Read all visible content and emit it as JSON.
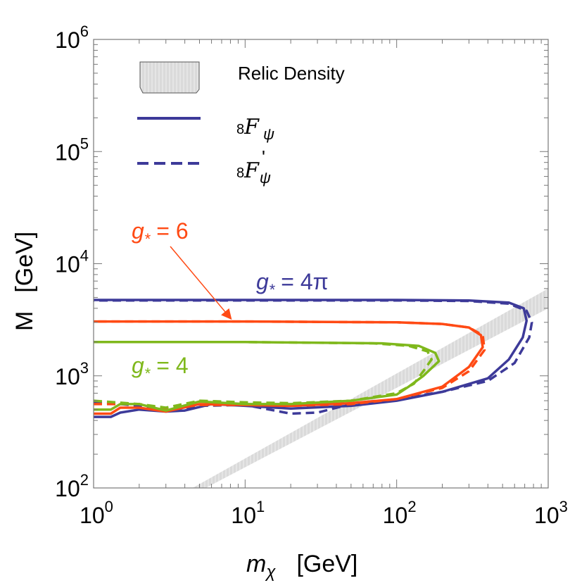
{
  "chart_data": {
    "type": "line",
    "xscale": "log",
    "yscale": "log",
    "xlim": [
      1,
      1000
    ],
    "ylim": [
      100,
      1000000
    ],
    "xlabel": "m_χ  [GeV]",
    "ylabel": "M  [GeV]",
    "xlabel_main": "m",
    "xlabel_sub": "χ",
    "xlabel_unit": "[GeV]",
    "ylabel_main": "M",
    "ylabel_unit": "[GeV]",
    "x_ticks": [
      {
        "base": "10",
        "exp": "0",
        "value": 1
      },
      {
        "base": "10",
        "exp": "1",
        "value": 10
      },
      {
        "base": "10",
        "exp": "2",
        "value": 100
      },
      {
        "base": "10",
        "exp": "3",
        "value": 1000
      }
    ],
    "y_ticks": [
      {
        "base": "10",
        "exp": "2",
        "value": 100
      },
      {
        "base": "10",
        "exp": "3",
        "value": 1000
      },
      {
        "base": "10",
        "exp": "4",
        "value": 10000
      },
      {
        "base": "10",
        "exp": "5",
        "value": 100000
      },
      {
        "base": "10",
        "exp": "6",
        "value": 1000000
      }
    ],
    "legend": {
      "position": "top-left",
      "relic_label": "Relic Density",
      "solid_main": "F",
      "solid_pre": "8",
      "solid_sub": "ψ",
      "dashed_main": "F",
      "dashed_pre": "8",
      "dashed_sub": "ψ",
      "dashed_prime": "'"
    },
    "relic_band": {
      "label": "Relic Density",
      "color": "#d9d9d9",
      "lower": [
        [
          5.5,
          100
        ],
        [
          1000,
          4000
        ]
      ],
      "upper": [
        [
          4.5,
          100
        ],
        [
          1000,
          6000
        ]
      ]
    },
    "annotations": [
      {
        "text_main": "g",
        "text_sub": "*",
        "text_rest": " = 6",
        "color": "#ff4a14",
        "arrow_to": [
          8,
          3000
        ]
      },
      {
        "text_main": "g",
        "text_sub": "*",
        "text_rest": " = 4π",
        "color": "#3d3a99"
      },
      {
        "text_main": "g",
        "text_sub": "*",
        "text_rest": " = 4",
        "color": "#7fb81c"
      }
    ],
    "series": [
      {
        "name": "8F_ψ, g* = 4π",
        "color": "#3d3a99",
        "style": "solid",
        "points": [
          [
            1,
            430
          ],
          [
            1.3,
            430
          ],
          [
            1.5,
            470
          ],
          [
            2,
            500
          ],
          [
            3,
            480
          ],
          [
            4,
            490
          ],
          [
            6,
            560
          ],
          [
            10,
            540
          ],
          [
            20,
            510
          ],
          [
            50,
            540
          ],
          [
            100,
            600
          ],
          [
            200,
            720
          ],
          [
            400,
            950
          ],
          [
            550,
            1400
          ],
          [
            680,
            2200
          ],
          [
            720,
            3100
          ],
          [
            690,
            4000
          ],
          [
            550,
            4500
          ],
          [
            300,
            4700
          ],
          [
            100,
            4750
          ],
          [
            10,
            4750
          ],
          [
            1,
            4750
          ]
        ]
      },
      {
        "name": "8F'_ψ, g* = 4π",
        "color": "#3d3a99",
        "style": "dashed",
        "points": [
          [
            1,
            580
          ],
          [
            1.5,
            560
          ],
          [
            2,
            540
          ],
          [
            3,
            490
          ],
          [
            5,
            540
          ],
          [
            10,
            550
          ],
          [
            20,
            460
          ],
          [
            30,
            470
          ],
          [
            50,
            560
          ],
          [
            100,
            620
          ],
          [
            200,
            720
          ],
          [
            400,
            900
          ],
          [
            600,
            1300
          ],
          [
            750,
            2200
          ],
          [
            780,
            3000
          ],
          [
            720,
            3800
          ],
          [
            550,
            4400
          ],
          [
            300,
            4650
          ],
          [
            100,
            4700
          ],
          [
            10,
            4700
          ],
          [
            1,
            4700
          ]
        ]
      },
      {
        "name": "8F_ψ, g* = 6",
        "color": "#ff4a14",
        "style": "solid",
        "points": [
          [
            1,
            460
          ],
          [
            1.3,
            460
          ],
          [
            1.5,
            520
          ],
          [
            2,
            520
          ],
          [
            3,
            480
          ],
          [
            5,
            560
          ],
          [
            10,
            550
          ],
          [
            20,
            540
          ],
          [
            50,
            570
          ],
          [
            100,
            620
          ],
          [
            200,
            800
          ],
          [
            300,
            1200
          ],
          [
            370,
            1800
          ],
          [
            360,
            2300
          ],
          [
            300,
            2700
          ],
          [
            200,
            2900
          ],
          [
            100,
            3000
          ],
          [
            10,
            3050
          ],
          [
            1,
            3050
          ]
        ]
      },
      {
        "name": "8F'_ψ, g* = 6",
        "color": "#ff4a14",
        "style": "dashed",
        "points": [
          [
            1,
            560
          ],
          [
            2,
            560
          ],
          [
            3,
            500
          ],
          [
            5,
            550
          ],
          [
            10,
            550
          ],
          [
            20,
            540
          ],
          [
            50,
            560
          ],
          [
            100,
            620
          ],
          [
            200,
            780
          ],
          [
            300,
            1100
          ],
          [
            380,
            1700
          ],
          [
            370,
            2300
          ],
          [
            300,
            2700
          ],
          [
            200,
            2900
          ],
          [
            100,
            3000
          ],
          [
            10,
            3050
          ],
          [
            1,
            3050
          ]
        ]
      },
      {
        "name": "8F_ψ, g* = 4",
        "color": "#7fb81c",
        "style": "solid",
        "points": [
          [
            1,
            500
          ],
          [
            1.3,
            500
          ],
          [
            1.5,
            560
          ],
          [
            2,
            560
          ],
          [
            3,
            490
          ],
          [
            5,
            590
          ],
          [
            10,
            560
          ],
          [
            20,
            560
          ],
          [
            50,
            600
          ],
          [
            100,
            680
          ],
          [
            120,
            800
          ],
          [
            150,
            1000
          ],
          [
            190,
            1350
          ],
          [
            180,
            1600
          ],
          [
            140,
            1850
          ],
          [
            80,
            1950
          ],
          [
            10,
            2000
          ],
          [
            1,
            2000
          ]
        ]
      },
      {
        "name": "8F'_ψ, g* = 4",
        "color": "#7fb81c",
        "style": "dashed",
        "points": [
          [
            1,
            600
          ],
          [
            2,
            560
          ],
          [
            3,
            520
          ],
          [
            5,
            600
          ],
          [
            10,
            580
          ],
          [
            20,
            570
          ],
          [
            50,
            600
          ],
          [
            100,
            700
          ],
          [
            130,
            850
          ],
          [
            150,
            1100
          ],
          [
            170,
            1400
          ],
          [
            160,
            1650
          ],
          [
            120,
            1850
          ],
          [
            70,
            1950
          ],
          [
            10,
            2000
          ],
          [
            1,
            2000
          ]
        ]
      }
    ]
  }
}
